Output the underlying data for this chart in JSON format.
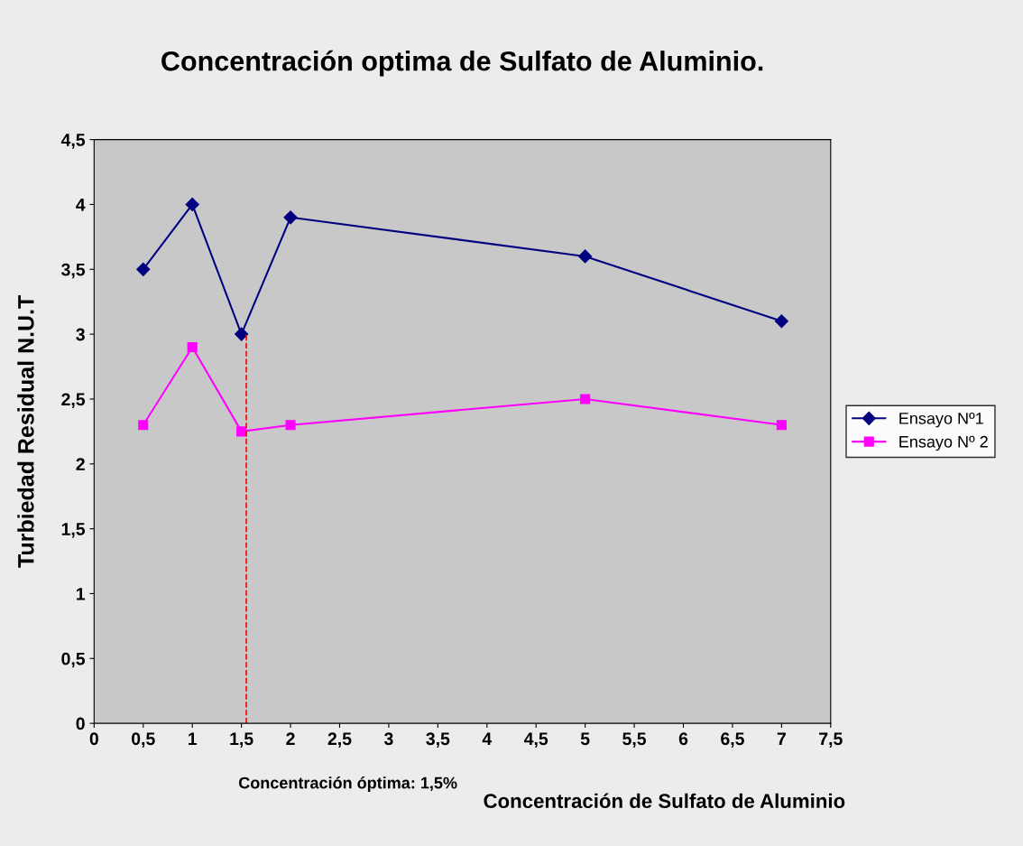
{
  "chart_data": {
    "type": "line",
    "title": "Concentración optima de Sulfato de Aluminio.",
    "xlabel": "Concentración de Sulfato de Aluminio",
    "ylabel": "Turbiedad Residual N.U.T",
    "x": [
      0.5,
      1,
      1.5,
      2,
      5,
      7
    ],
    "series": [
      {
        "name": "Ensayo Nº1",
        "color": "#000080",
        "marker": "diamond",
        "values": [
          3.5,
          4,
          3,
          3.9,
          3.6,
          3.1
        ]
      },
      {
        "name": "Ensayo Nº 2",
        "color": "#ff00ff",
        "marker": "square",
        "values": [
          2.3,
          2.9,
          2.25,
          2.3,
          2.5,
          2.3
        ]
      },
      {
        "color": "#ff0000",
        "line_style": "dashed",
        "marker": "none",
        "x": [
          1.55,
          1.55
        ],
        "values": [
          0,
          3
        ]
      }
    ],
    "xlim": [
      0,
      7.5
    ],
    "xticks": [
      0,
      {
        "value": 0.5,
        "label": "0,5"
      },
      1,
      {
        "value": 1.5,
        "label": "1,5"
      },
      2,
      {
        "value": 2.5,
        "label": "2,5"
      },
      3,
      {
        "value": 3.5,
        "label": "3,5"
      },
      4,
      {
        "value": 4.5,
        "label": "4,5"
      },
      5,
      {
        "value": 5.5,
        "label": "5,5"
      },
      6,
      {
        "value": 6.5,
        "label": "6,5"
      },
      7,
      {
        "value": 7.5,
        "label": "7,5"
      }
    ],
    "ylim": [
      0,
      4.5
    ],
    "yticks": [
      0,
      {
        "value": 0.5,
        "label": "0,5"
      },
      1,
      {
        "value": 1.5,
        "label": "1,5"
      },
      2,
      {
        "value": 2.5,
        "label": "2,5"
      },
      3,
      {
        "value": 3.5,
        "label": "3,5"
      },
      4,
      {
        "value": 4.5,
        "label": "4,5"
      }
    ],
    "annotations": [
      "Concentración óptima: 1,5%"
    ],
    "legend": "right",
    "grid": false
  }
}
